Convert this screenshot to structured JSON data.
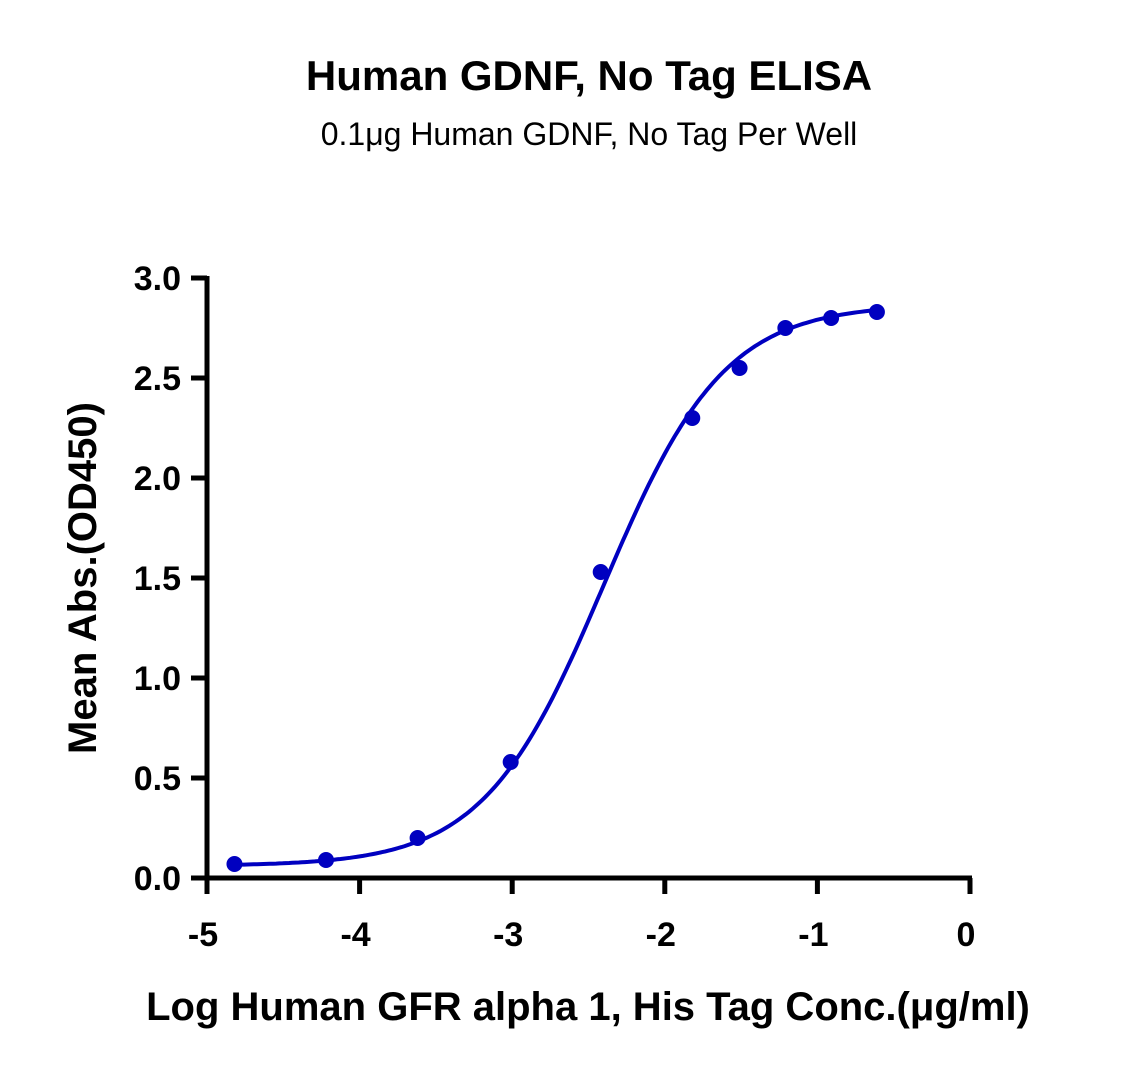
{
  "chart_data": {
    "type": "scatter",
    "title": "Human GDNF, No Tag ELISA",
    "subtitle": "0.1μg Human GDNF, No Tag Per Well",
    "xlabel": "Log Human GFR alpha 1, His Tag Conc.(μg/ml)",
    "ylabel": "Mean Abs.(OD450)",
    "xlim": [
      -5,
      0
    ],
    "ylim": [
      0,
      3.0
    ],
    "xticks": [
      "-5",
      "-4",
      "-3",
      "-2",
      "-1",
      "0"
    ],
    "yticks": [
      "0.0",
      "0.5",
      "1.0",
      "1.5",
      "2.0",
      "2.5",
      "3.0"
    ],
    "grid": false,
    "fit_curve": "sigmoidal",
    "color": "#0000c0",
    "series": [
      {
        "x": [
          -4.82,
          -4.22,
          -3.62,
          -3.01,
          -2.42,
          -1.82,
          -1.51,
          -1.21,
          -0.91,
          -0.61
        ],
        "y": [
          0.07,
          0.09,
          0.2,
          0.58,
          1.53,
          2.3,
          2.55,
          2.75,
          2.8,
          2.83
        ]
      }
    ]
  }
}
